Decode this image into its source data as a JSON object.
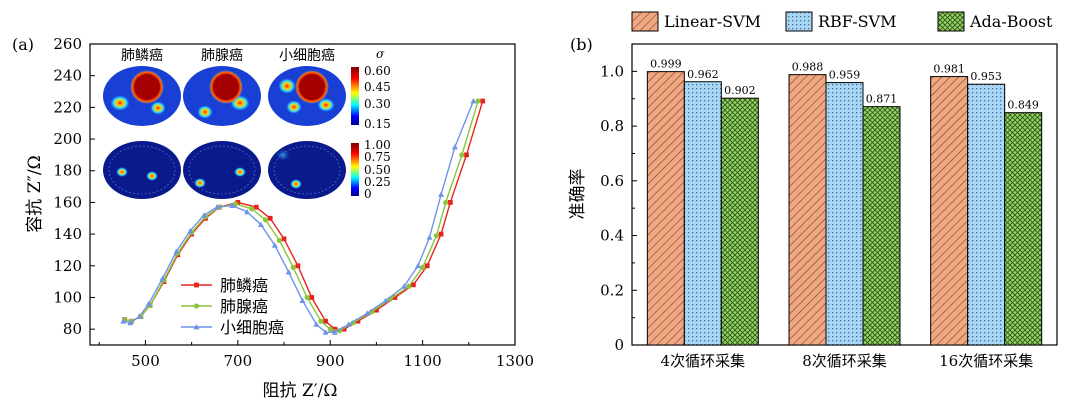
{
  "panel_a": {
    "label": "(a)",
    "inset": {
      "column_titles": [
        "肺鳞癌",
        "肺腺癌",
        "小细胞癌"
      ],
      "colorbar_top": {
        "title": "σ",
        "ticks": [
          "0.60",
          "0.45",
          "0.30",
          "0.15"
        ]
      },
      "colorbar_bottom": {
        "ticks": [
          "1.00",
          "0.75",
          "0.50",
          "0.25",
          "0"
        ]
      }
    }
  },
  "panel_b": {
    "label": "(b)"
  },
  "chart_data": [
    {
      "type": "line",
      "xlabel": "阻抗 Z′/Ω",
      "ylabel": "容抗 Z″/Ω",
      "xlim": [
        380,
        1300
      ],
      "ylim": [
        70,
        260
      ],
      "xticks": [
        500,
        700,
        900,
        1100,
        1300
      ],
      "yticks": [
        80,
        100,
        120,
        140,
        160,
        180,
        200,
        220,
        240,
        260
      ],
      "legend_position": "bottom-left",
      "series": [
        {
          "name": "肺鳞癌",
          "color": "#e8231c",
          "marker": "square",
          "x": [
            455,
            470,
            490,
            510,
            540,
            570,
            600,
            630,
            660,
            700,
            740,
            770,
            800,
            830,
            860,
            890,
            910,
            930,
            960,
            1000,
            1040,
            1080,
            1110,
            1140,
            1160,
            1195,
            1230
          ],
          "y": [
            86,
            85,
            88,
            95,
            110,
            127,
            140,
            150,
            157,
            160,
            157,
            150,
            137,
            120,
            100,
            85,
            80,
            80,
            85,
            92,
            100,
            108,
            120,
            140,
            160,
            190,
            224
          ]
        },
        {
          "name": "肺腺癌",
          "color": "#8cc43c",
          "marker": "circle",
          "x": [
            455,
            470,
            490,
            510,
            540,
            570,
            600,
            630,
            660,
            695,
            730,
            760,
            790,
            820,
            850,
            880,
            900,
            920,
            950,
            990,
            1030,
            1070,
            1100,
            1130,
            1150,
            1185,
            1220
          ],
          "y": [
            86,
            85,
            88,
            95,
            111,
            128,
            141,
            151,
            157,
            159,
            156,
            149,
            136,
            119,
            100,
            85,
            80,
            79,
            84,
            91,
            99,
            107,
            119,
            139,
            160,
            190,
            224
          ]
        },
        {
          "name": "小细胞癌",
          "color": "#6f93e8",
          "marker": "triangle",
          "x": [
            452,
            467,
            487,
            507,
            537,
            567,
            597,
            627,
            655,
            688,
            720,
            750,
            780,
            810,
            840,
            870,
            890,
            910,
            940,
            980,
            1020,
            1060,
            1090,
            1115,
            1140,
            1170,
            1210
          ],
          "y": [
            85,
            84,
            88,
            96,
            112,
            129,
            142,
            152,
            157,
            158,
            154,
            146,
            133,
            116,
            98,
            83,
            78,
            78,
            83,
            90,
            98,
            107,
            120,
            138,
            165,
            195,
            224
          ]
        }
      ]
    },
    {
      "type": "bar",
      "ylabel": "准确率",
      "ylim": [
        0,
        1.1
      ],
      "yticks": [
        0,
        0.2,
        0.4,
        0.6,
        0.8,
        1.0
      ],
      "yticklabels": [
        "0",
        "0.2",
        "0.4",
        "0.6",
        "0.8",
        "1.0"
      ],
      "categories": [
        "4次循环采集",
        "8次循环采集",
        "16次循环采集"
      ],
      "legend_position": "top",
      "series": [
        {
          "name": "Linear-SVM",
          "color": "#f0a882",
          "pattern": "diagonal-hatch",
          "values": [
            0.999,
            0.988,
            0.981
          ],
          "labels": [
            "0.999",
            "0.988",
            "0.981"
          ]
        },
        {
          "name": "RBF-SVM",
          "color": "#a9d6f5",
          "pattern": "dot-grid",
          "values": [
            0.962,
            0.959,
            0.953
          ],
          "labels": [
            "0.962",
            "0.959",
            "0.953"
          ]
        },
        {
          "name": "Ada-Boost",
          "color": "#98d16a",
          "pattern": "cross-hatch",
          "values": [
            0.902,
            0.871,
            0.849
          ],
          "labels": [
            "0.902",
            "0.871",
            "0.849"
          ]
        }
      ]
    }
  ]
}
